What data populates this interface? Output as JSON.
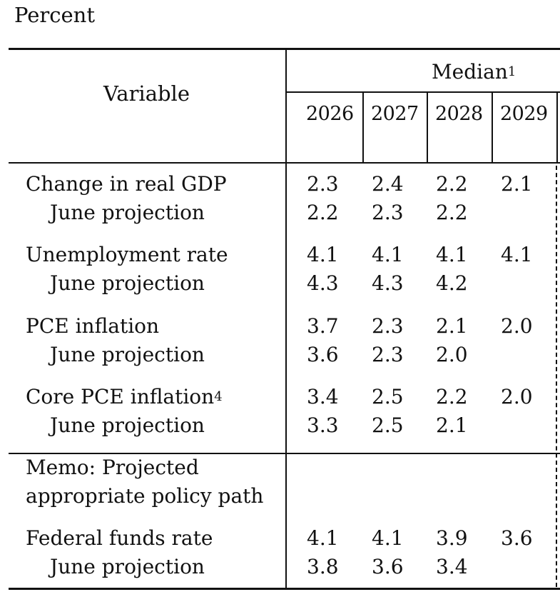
{
  "caption": "Percent",
  "header": {
    "variable_label": "Variable",
    "median_label": "Median",
    "median_footnote": "1",
    "years": [
      "2026",
      "2027",
      "2028",
      "2029"
    ]
  },
  "rows": [
    {
      "label": "Change in real GDP",
      "footnote": "",
      "values": [
        "2.3",
        "2.4",
        "2.2",
        "2.1"
      ]
    },
    {
      "label": "June projection",
      "footnote": "",
      "values": [
        "2.2",
        "2.3",
        "2.2",
        ""
      ]
    },
    {
      "label": "Unemployment rate",
      "footnote": "",
      "values": [
        "4.1",
        "4.1",
        "4.1",
        "4.1"
      ]
    },
    {
      "label": "June projection",
      "footnote": "",
      "values": [
        "4.3",
        "4.3",
        "4.2",
        ""
      ]
    },
    {
      "label": "PCE inflation",
      "footnote": "",
      "values": [
        "3.7",
        "2.3",
        "2.1",
        "2.0"
      ]
    },
    {
      "label": "June projection",
      "footnote": "",
      "values": [
        "3.6",
        "2.3",
        "2.0",
        ""
      ]
    },
    {
      "label": "Core PCE inflation",
      "footnote": "4",
      "values": [
        "3.4",
        "2.5",
        "2.2",
        "2.0"
      ]
    },
    {
      "label": "June projection",
      "footnote": "",
      "values": [
        "3.3",
        "2.5",
        "2.1",
        ""
      ]
    }
  ],
  "memo": {
    "line1": "Memo: Projected",
    "line2": "appropriate policy path"
  },
  "memo_rows": [
    {
      "label": "Federal funds rate",
      "values": [
        "4.1",
        "4.1",
        "3.9",
        "3.6"
      ]
    },
    {
      "label": "June projection",
      "values": [
        "3.8",
        "3.6",
        "3.4",
        ""
      ]
    }
  ]
}
